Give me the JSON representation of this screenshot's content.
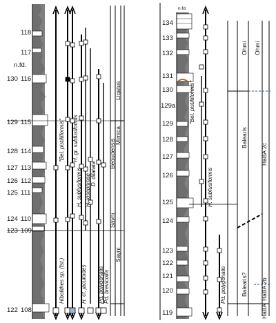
{
  "left_section": {
    "nfd_label": "n.fd.",
    "bed_numbers": [
      {
        "a": "",
        "b": "118"
      },
      {
        "a": "",
        "b": "117"
      },
      {
        "a": "130",
        "b": "116"
      },
      {
        "a": "129",
        "b": "115"
      },
      {
        "a": "128",
        "b": "114"
      },
      {
        "a": "127",
        "b": "113"
      },
      {
        "a": "126",
        "b": "112"
      },
      {
        "a": "125",
        "b": "111"
      },
      {
        "a": "124",
        "b": "110"
      },
      {
        "a": "123",
        "b": "109"
      },
      {
        "a": "122",
        "b": "108"
      }
    ],
    "taxa": [
      "Hibolithes sp. (fst.)",
      "\"Bel. pistilliformis\"",
      "H. gr. subfusiformis",
      "H. subfusiformis",
      "H. cf. jaculoides",
      "H. josephinae",
      "D. dilatata",
      "Pd. polygonalis",
      "Pd. brevicollis"
    ],
    "zones": [
      "Ligatus",
      "Begudensis",
      "Mimica",
      "Sayni",
      "Sayni"
    ]
  },
  "right_section": {
    "nfd_label": "n.fd.",
    "bed_numbers": [
      "134",
      "133",
      "132",
      "131",
      "130",
      "129a",
      "129",
      "128",
      "127",
      "126",
      "125",
      "124",
      "123",
      "122",
      "121",
      "120",
      "119"
    ],
    "taxa": [
      "\"Bel. pistilliformis\"",
      "H. subfusiformis",
      "Pd. polygonalis"
    ],
    "zones": [
      "Ohmi",
      "Ohmi",
      "Balearis",
      "HaBA 2c",
      "Balearis?",
      "HaBA 2b",
      "HaBA"
    ]
  },
  "colors": {
    "shale": "#808080",
    "limestone": "#ffffff",
    "line": "#000000",
    "accent": "#b4561e",
    "dashed": "#2a4d9e",
    "cast": "#9bb8d1"
  }
}
